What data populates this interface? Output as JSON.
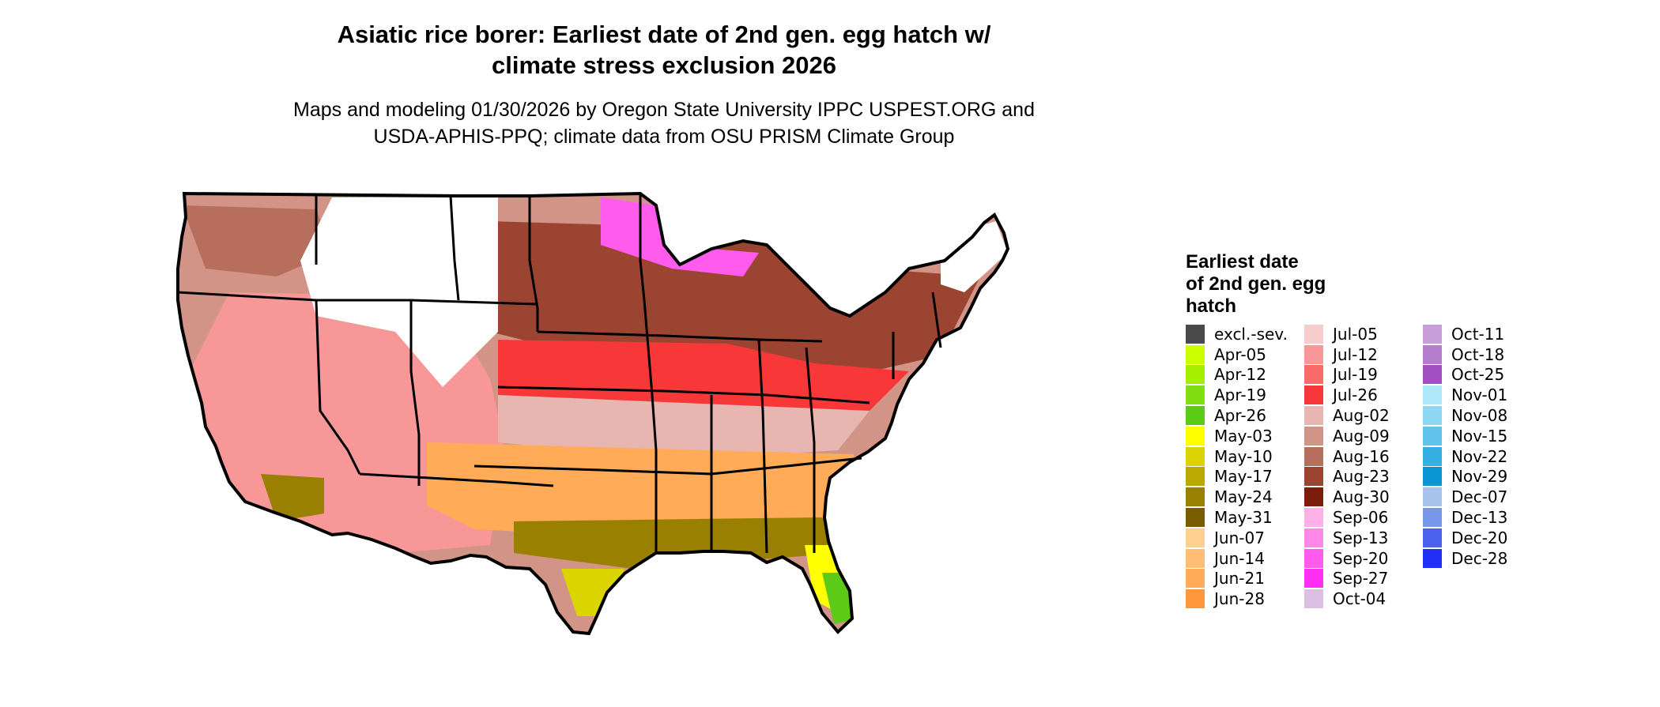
{
  "title_line1": "Asiatic rice borer: Earliest date of 2nd gen. egg hatch w/",
  "title_line2": "climate stress exclusion 2026",
  "subtitle_line1": "Maps and modeling 01/30/2026 by Oregon State University IPPC USPEST.ORG and",
  "subtitle_line2": "USDA-APHIS-PPQ; climate data from OSU PRISM Climate Group",
  "legend": {
    "title_line1": "Earliest date",
    "title_line2": "of 2nd gen. egg",
    "title_line3": "hatch",
    "items": [
      {
        "label": "excl.-sev.",
        "color": "#4a4a4a"
      },
      {
        "label": "Apr-05",
        "color": "#ccff00"
      },
      {
        "label": "Apr-12",
        "color": "#a6ee00"
      },
      {
        "label": "Apr-19",
        "color": "#80dd10"
      },
      {
        "label": "Apr-26",
        "color": "#5ccb18"
      },
      {
        "label": "May-03",
        "color": "#ffff00"
      },
      {
        "label": "May-10",
        "color": "#dcd400"
      },
      {
        "label": "May-17",
        "color": "#bba800"
      },
      {
        "label": "May-24",
        "color": "#9a8000"
      },
      {
        "label": "May-31",
        "color": "#7a5c00"
      },
      {
        "label": "Jun-07",
        "color": "#ffd090"
      },
      {
        "label": "Jun-14",
        "color": "#ffbe74"
      },
      {
        "label": "Jun-21",
        "color": "#ffab58"
      },
      {
        "label": "Jun-28",
        "color": "#ff983c"
      },
      {
        "label": "Jul-05",
        "color": "#f6cccc"
      },
      {
        "label": "Jul-12",
        "color": "#f79797"
      },
      {
        "label": "Jul-19",
        "color": "#f96a6a"
      },
      {
        "label": "Jul-26",
        "color": "#f83838"
      },
      {
        "label": "Aug-02",
        "color": "#e8b6b0"
      },
      {
        "label": "Aug-09",
        "color": "#d29486"
      },
      {
        "label": "Aug-16",
        "color": "#b86e5c"
      },
      {
        "label": "Aug-23",
        "color": "#9c4432"
      },
      {
        "label": "Aug-30",
        "color": "#7c1c0c"
      },
      {
        "label": "Sep-06",
        "color": "#ffb0e6"
      },
      {
        "label": "Sep-13",
        "color": "#ff88e8"
      },
      {
        "label": "Sep-20",
        "color": "#ff5cee"
      },
      {
        "label": "Sep-27",
        "color": "#ff30f4"
      },
      {
        "label": "Oct-04",
        "color": "#dcc0e4"
      },
      {
        "label": "Oct-11",
        "color": "#c89ed8"
      },
      {
        "label": "Oct-18",
        "color": "#b47ccc"
      },
      {
        "label": "Oct-25",
        "color": "#a050c0"
      },
      {
        "label": "Nov-01",
        "color": "#b0e8fb"
      },
      {
        "label": "Nov-08",
        "color": "#8cd8f4"
      },
      {
        "label": "Nov-15",
        "color": "#60c4ec"
      },
      {
        "label": "Nov-22",
        "color": "#34b0e4"
      },
      {
        "label": "Nov-29",
        "color": "#0896d4"
      },
      {
        "label": "Dec-07",
        "color": "#a8c4ec"
      },
      {
        "label": "Dec-13",
        "color": "#7896ea"
      },
      {
        "label": "Dec-20",
        "color": "#4c62ec"
      },
      {
        "label": "Dec-28",
        "color": "#2030f4"
      }
    ]
  },
  "colors": {
    "outline": "#000000",
    "unsuitable": "#ffffff"
  }
}
